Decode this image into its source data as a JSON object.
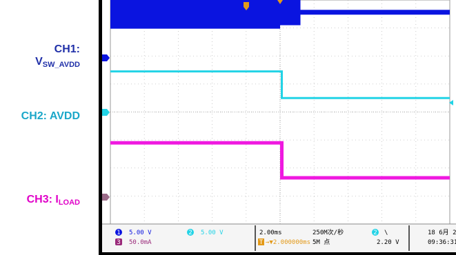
{
  "labels": {
    "ch1_main": "CH1:",
    "ch1_v": "V",
    "ch1_sub": "SW_AVDD",
    "ch2": "CH2: AVDD",
    "ch3_main": "CH3: I",
    "ch3_sub": "LOAD"
  },
  "status_bar": {
    "ch1_num": "1",
    "ch1_scale": "5.00 V",
    "ch2_num": "2",
    "ch2_scale": "5.00 V",
    "ch3_num": "3",
    "ch3_scale": "50.0mA",
    "timebase": "2.00ms",
    "trigger_num": "T",
    "trigger_pos": "→▼2.000000ms",
    "sample_rate": "250M次/秒",
    "record_length": "5M 点",
    "trig_ch_num": "2",
    "trig_slope": "\\",
    "trig_level": "2.20 V",
    "date": "18 6月 2",
    "time": "09:36:31"
  },
  "colors": {
    "ch1": "#0a14e0",
    "ch2": "#22d3e6",
    "ch3": "#ef19e0",
    "ch1_label": "#1f2fa8",
    "ch2_label": "#1aa7c9",
    "ch3_label": "#e000c8",
    "trigger": "#e39a1a"
  },
  "chart_data": {
    "type": "line",
    "x_unit_per_div": "2.00ms",
    "x_divisions": 10,
    "trigger_time_div": 5,
    "series": [
      {
        "name": "CH1",
        "points": [
          [
            0,
            7.0
          ],
          [
            5.0,
            7.0
          ],
          [
            5.0,
            7.9
          ],
          [
            5.6,
            7.9
          ],
          [
            5.6,
            7.55
          ],
          [
            10,
            7.55
          ]
        ],
        "switching_until_div": 5.6
      },
      {
        "name": "CH2",
        "points": [
          [
            0,
            5.45
          ],
          [
            5.05,
            5.45
          ],
          [
            5.05,
            4.5
          ],
          [
            10,
            4.5
          ]
        ]
      },
      {
        "name": "CH3",
        "points": [
          [
            0,
            2.9
          ],
          [
            5.05,
            2.9
          ],
          [
            5.05,
            1.65
          ],
          [
            10,
            1.65
          ]
        ]
      }
    ]
  }
}
